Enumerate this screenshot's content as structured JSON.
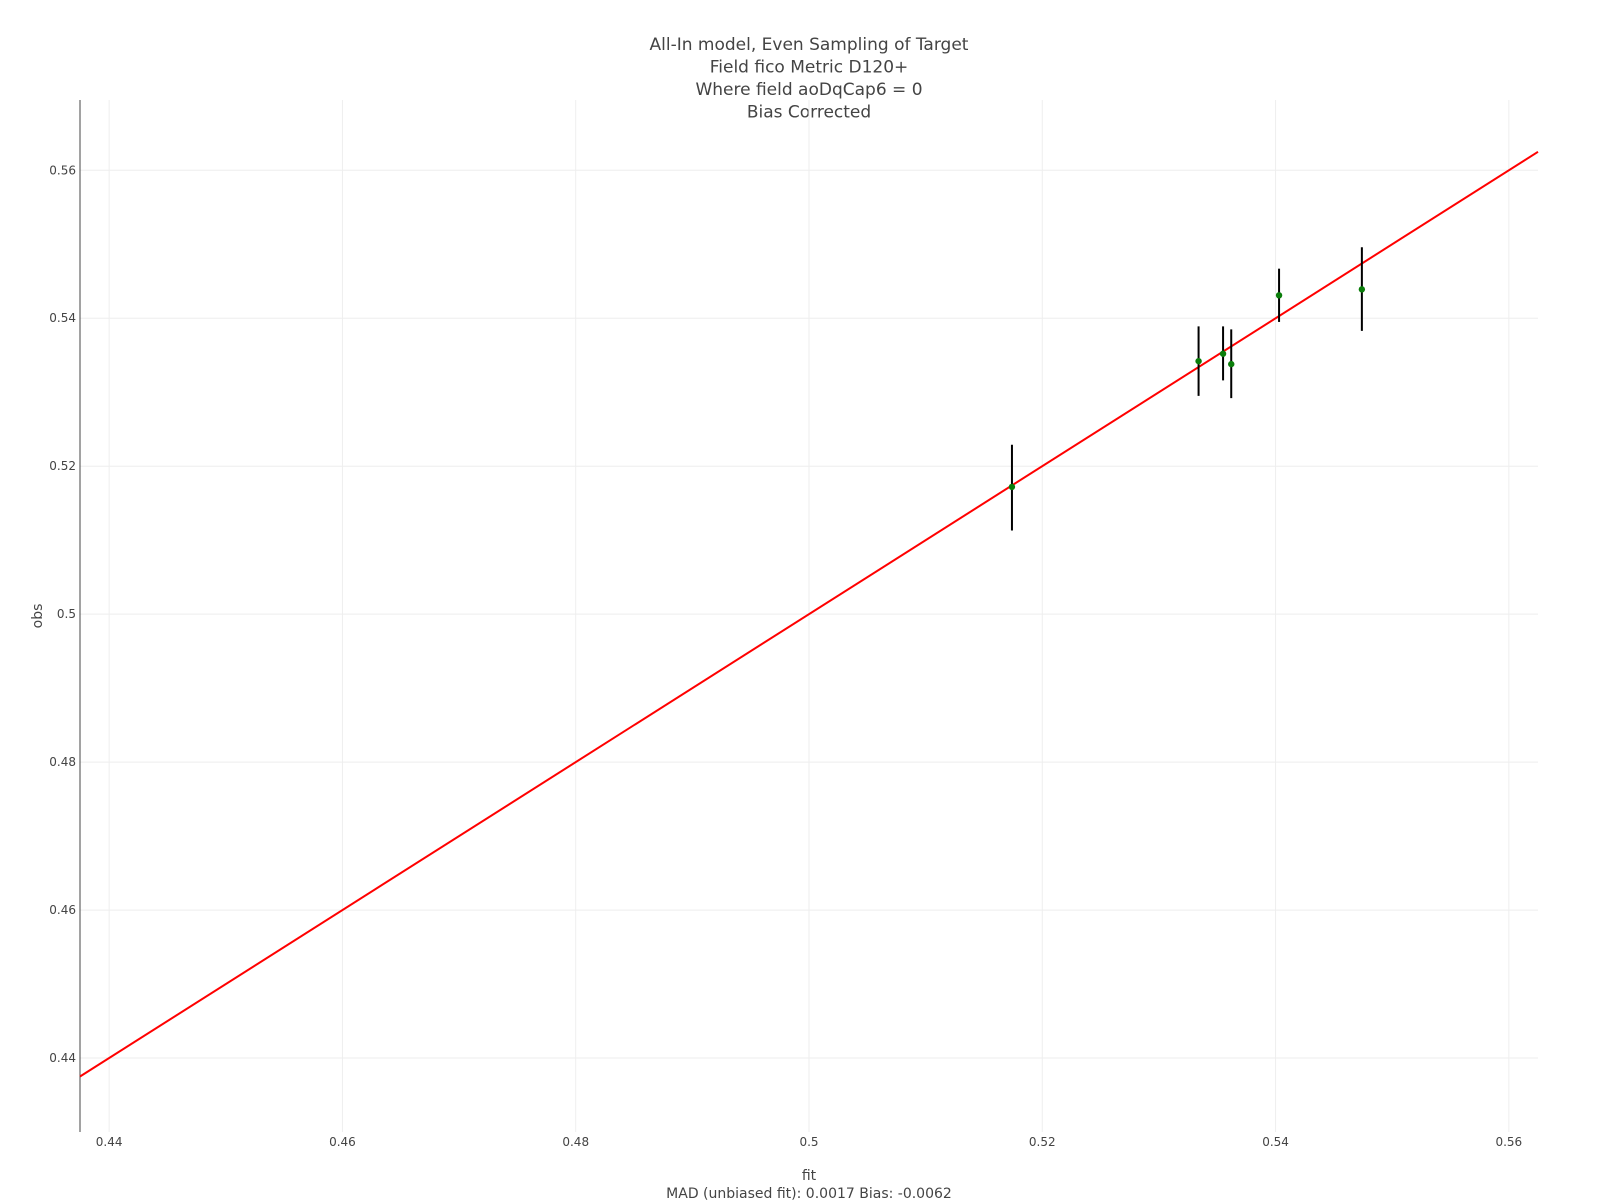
{
  "chart_data": {
    "type": "scatter",
    "title_lines": [
      "All-In model, Even Sampling of Target",
      "Field fico Metric D120+",
      "Where field aoDqCap6 = 0",
      "Bias Corrected"
    ],
    "xlabel": "fit",
    "ylabel": "obs",
    "xlabel_sub": "MAD (unbiased fit): 0.0017 Bias: -0.0062",
    "xlim": [
      0.4375,
      0.5625
    ],
    "ylim": [
      0.43,
      0.5695
    ],
    "x_ticks": [
      0.44,
      0.46,
      0.48,
      0.5,
      0.52,
      0.54,
      0.56
    ],
    "x_tick_labels": [
      "0.44",
      "0.46",
      "0.48",
      "0.5",
      "0.52",
      "0.54",
      "0.56"
    ],
    "y_ticks": [
      0.44,
      0.46,
      0.48,
      0.5,
      0.52,
      0.54,
      0.56
    ],
    "y_tick_labels": [
      "0.44",
      "0.46",
      "0.48",
      "0.5",
      "0.52",
      "0.54",
      "0.56"
    ],
    "grid": true,
    "reference_line": {
      "x": [
        0.4375,
        0.5625
      ],
      "y": [
        0.4375,
        0.5625
      ],
      "color": "#ff0000"
    },
    "points": [
      {
        "x": 0.5174,
        "y": 0.5172,
        "err_low": 0.5113,
        "err_high": 0.5229
      },
      {
        "x": 0.5334,
        "y": 0.5342,
        "err_low": 0.5295,
        "err_high": 0.5389
      },
      {
        "x": 0.5355,
        "y": 0.5352,
        "err_low": 0.5316,
        "err_high": 0.5389
      },
      {
        "x": 0.5362,
        "y": 0.5338,
        "err_low": 0.5292,
        "err_high": 0.5385
      },
      {
        "x": 0.5403,
        "y": 0.5431,
        "err_low": 0.5395,
        "err_high": 0.5467
      },
      {
        "x": 0.5474,
        "y": 0.5439,
        "err_low": 0.5383,
        "err_high": 0.5496
      }
    ],
    "point_color": "#0a7d0a",
    "errorbar_color": "#000000",
    "grid_color": "#eeeeee",
    "axis_color": "#444444"
  }
}
